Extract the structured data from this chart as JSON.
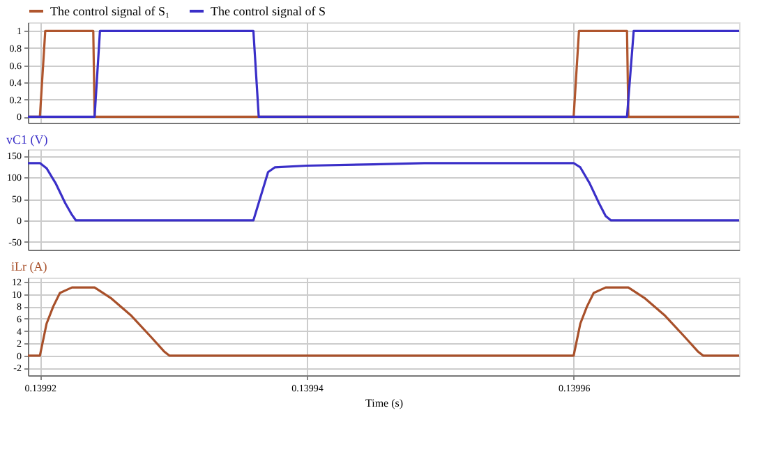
{
  "chart_data": [
    {
      "type": "line",
      "legend": "top left",
      "grid": true,
      "tick_labels": "y",
      "xlim": [
        0.1399191,
        0.1399724
      ],
      "xticks": [
        0.13992,
        0.13994,
        0.13996
      ],
      "ylim": [
        -0.07,
        1.1
      ],
      "yticks": [
        0,
        0.2,
        0.4,
        0.6,
        0.8,
        1
      ],
      "series": [
        {
          "name": "The control signal of S₁",
          "color": "#b0562e",
          "x": [
            0.1399191,
            0.13992,
            0.1399204,
            0.139924,
            0.1399241,
            0.13996,
            0.1399604,
            0.139964,
            0.1399641,
            0.1399724
          ],
          "values": [
            0,
            0,
            1,
            1,
            0,
            0,
            1,
            1,
            0,
            0
          ]
        },
        {
          "name": "The control signal of S",
          "color": "#3a2fc8",
          "x": [
            0.1399191,
            0.1399241,
            0.1399245,
            0.139936,
            0.1399364,
            0.139964,
            0.1399645,
            0.1399724
          ],
          "values": [
            0,
            0,
            1,
            1,
            0,
            0,
            1,
            1
          ]
        }
      ]
    },
    {
      "type": "line",
      "grid": true,
      "tick_labels": "y",
      "ylabel": "vC1 (V)",
      "xlim": [
        0.1399191,
        0.1399724
      ],
      "xticks": [
        0.13992,
        0.13994,
        0.13996
      ],
      "ylim": [
        -68,
        165
      ],
      "yticks": [
        -50,
        0,
        50,
        100,
        150
      ],
      "series": [
        {
          "color": "#3a2fc8",
          "x": [
            0.1399191,
            0.13992,
            0.1399205,
            0.1399212,
            0.1399219,
            0.1399224,
            0.1399227,
            0.139936,
            0.1399371,
            0.1399376,
            0.13994,
            0.139945,
            0.1399488,
            0.13996,
            0.1399605,
            0.1399612,
            0.1399619,
            0.1399624,
            0.1399628,
            0.1399724
          ],
          "values": [
            133,
            133,
            121,
            85,
            40,
            13,
            0,
            0,
            112,
            123,
            127,
            130,
            133,
            133,
            123,
            86,
            40,
            10,
            0,
            0
          ]
        }
      ]
    },
    {
      "type": "line",
      "grid": true,
      "ylabel": "iLr (A)",
      "xlabel": "Time (s)",
      "xlim": [
        0.1399191,
        0.1399724
      ],
      "xticks": [
        0.13992,
        0.13994,
        0.13996
      ],
      "ylim": [
        -3.2,
        12.7
      ],
      "yticks": [
        -2,
        0,
        2,
        4,
        6,
        8,
        10,
        12
      ],
      "series": [
        {
          "color": "#a8502a",
          "x": [
            0.1399191,
            0.13992,
            0.1399205,
            0.139921,
            0.1399215,
            0.139922,
            0.1399224,
            0.1399241,
            0.1399253,
            0.1399268,
            0.1399283,
            0.1399293,
            0.1399297,
            0.13996,
            0.1399605,
            0.139961,
            0.1399615,
            0.139962,
            0.1399624,
            0.1399641,
            0.1399653,
            0.1399668,
            0.1399683,
            0.1399693,
            0.1399697,
            0.1399724
          ],
          "values": [
            0,
            0,
            5.2,
            8,
            10.2,
            10.7,
            11.1,
            11.1,
            9.4,
            6.6,
            3.1,
            0.7,
            0,
            0,
            5.2,
            8,
            10.2,
            10.7,
            11.1,
            11.1,
            9.4,
            6.6,
            3.1,
            0.7,
            0,
            0
          ]
        }
      ]
    }
  ]
}
